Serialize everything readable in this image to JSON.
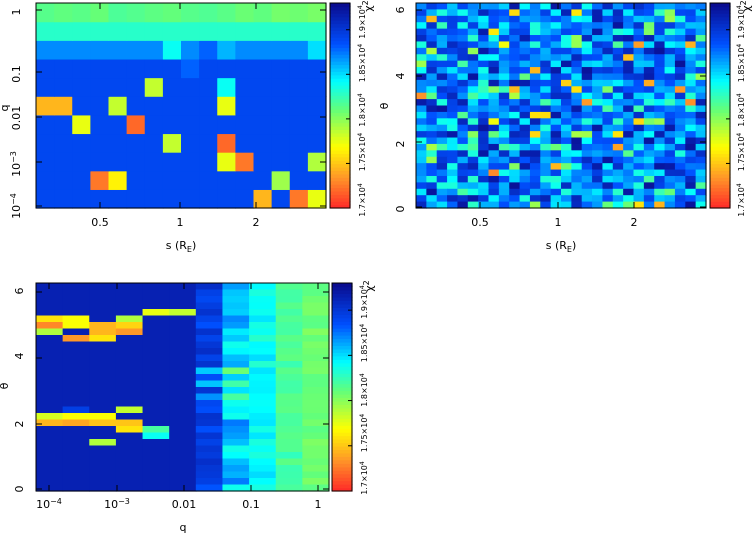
{
  "chart_data": [
    {
      "type": "heatmap",
      "title": "",
      "xlabel": "s (R_E)",
      "ylabel": "q",
      "xscale": "log",
      "yscale": "log",
      "xticks": [
        "0.5",
        "1",
        "2"
      ],
      "yticks": [
        "10^-4",
        "10^-3",
        "0.01",
        "0.1",
        "1"
      ],
      "grid_cols": 16,
      "grid_rows": 11,
      "colorbar_label": "χ²",
      "colorbar_ticks": [
        "1.7×10^4",
        "1.75×10^4",
        "1.8×10^4",
        "1.85×10^4",
        "1.9×10^4"
      ],
      "colorbar_range": [
        17000,
        19300
      ],
      "note": "rows listed bottom (q≈10^-4) to top (q≈1); values are chi-square estimates"
    },
    {
      "type": "heatmap",
      "title": "",
      "xlabel": "s (R_E)",
      "ylabel": "θ",
      "xscale": "log",
      "yscale": "linear",
      "xticks": [
        "0.5",
        "1",
        "2"
      ],
      "yticks": [
        "0",
        "2",
        "4",
        "6"
      ],
      "ylim": [
        0,
        6.28
      ],
      "grid_cols": 28,
      "grid_rows": 32,
      "colorbar_label": "χ²",
      "colorbar_ticks": [
        "1.7×10^4",
        "1.75×10^4",
        "1.8×10^4",
        "1.85×10^4",
        "1.9×10^4"
      ],
      "colorbar_range": [
        17000,
        19300
      ]
    },
    {
      "type": "heatmap",
      "title": "",
      "xlabel": "q",
      "ylabel": "θ",
      "xscale": "log",
      "yscale": "linear",
      "xticks": [
        "10^-4",
        "10^-3",
        "0.01",
        "0.1",
        "1"
      ],
      "yticks": [
        "0",
        "2",
        "4",
        "6"
      ],
      "ylim": [
        0,
        6.28
      ],
      "grid_cols": 11,
      "grid_rows": 32,
      "colorbar_label": "χ²",
      "colorbar_ticks": [
        "1.7×10^4",
        "1.75×10^4",
        "1.8×10^4",
        "1.85×10^4",
        "1.9×10^4"
      ],
      "colorbar_range": [
        17000,
        19300
      ]
    }
  ],
  "panel1": {
    "xlabel": "s (R",
    "xlabel_sub": "E",
    "xlabel_close": ")",
    "ylabel": "q",
    "xticks": [
      "0.5",
      "1",
      "2"
    ],
    "ytick_pow": [
      {
        "base": "10",
        "exp": "−4"
      },
      {
        "base": "10",
        "exp": "−3"
      }
    ],
    "yticks_plain": [
      "0.01",
      "0.1",
      "1"
    ],
    "cb_title": "χ",
    "cb_title_sup": "2",
    "cb_ticks": [
      "1.7×10",
      "1.75×10",
      "1.8×10",
      "1.85×10",
      "1.9×10"
    ],
    "cb_ticks_sup": "4"
  },
  "panel2": {
    "xlabel": "s (R",
    "xlabel_sub": "E",
    "xlabel_close": ")",
    "ylabel": "θ",
    "xticks": [
      "0.5",
      "1",
      "2"
    ],
    "yticks": [
      "0",
      "2",
      "4",
      "6"
    ],
    "cb_title": "χ",
    "cb_title_sup": "2",
    "cb_ticks": [
      "1.7×10",
      "1.75×10",
      "1.8×10",
      "1.85×10",
      "1.9×10"
    ],
    "cb_ticks_sup": "4"
  },
  "panel3": {
    "xlabel": "q",
    "ylabel": "θ",
    "xtick_pow": [
      {
        "base": "10",
        "exp": "−4"
      },
      {
        "base": "10",
        "exp": "−3"
      }
    ],
    "xticks_plain": [
      "0.01",
      "0.1",
      "1"
    ],
    "yticks": [
      "0",
      "2",
      "4",
      "6"
    ],
    "cb_title": "χ",
    "cb_title_sup": "2",
    "cb_ticks": [
      "1.7×10",
      "1.75×10",
      "1.8×10",
      "1.85×10",
      "1.9×10"
    ],
    "cb_ticks_sup": "4"
  },
  "grids": {
    "panel1_rows": [
      [
        18900,
        18900,
        18900,
        18900,
        18900,
        18900,
        18900,
        18900,
        18900,
        18900,
        18900,
        18900,
        17450,
        18900,
        17250,
        17750
      ],
      [
        18900,
        18900,
        18900,
        17250,
        17650,
        18900,
        18900,
        18900,
        18900,
        18900,
        18900,
        18900,
        18900,
        17950,
        18900,
        18900
      ],
      [
        18900,
        18900,
        18900,
        18900,
        18900,
        18900,
        18900,
        18900,
        18900,
        18900,
        17750,
        17250,
        18900,
        18900,
        18900,
        17900
      ],
      [
        18900,
        18900,
        18900,
        18900,
        18900,
        18900,
        18900,
        17850,
        18900,
        18900,
        17200,
        18900,
        18900,
        18900,
        18900,
        18900
      ],
      [
        18900,
        18900,
        17750,
        18900,
        18900,
        17200,
        18900,
        18900,
        18900,
        18900,
        18900,
        18900,
        18900,
        18900,
        18900,
        18900
      ],
      [
        17450,
        17450,
        18900,
        18900,
        17850,
        18900,
        18900,
        18900,
        18900,
        18900,
        17750,
        18900,
        18900,
        18900,
        18900,
        18900
      ],
      [
        18900,
        18900,
        18900,
        18900,
        18900,
        18900,
        17850,
        18900,
        18900,
        18900,
        18400,
        18900,
        18900,
        18900,
        18900,
        18900
      ],
      [
        18900,
        18900,
        18900,
        18900,
        18900,
        18900,
        18900,
        18900,
        18800,
        18900,
        18900,
        18900,
        18900,
        18900,
        18900,
        18900
      ],
      [
        18700,
        18700,
        18700,
        18700,
        18700,
        18700,
        18700,
        18400,
        18700,
        18800,
        18600,
        18700,
        18700,
        18700,
        18700,
        18500
      ],
      [
        18300,
        18300,
        18300,
        18300,
        18300,
        18300,
        18300,
        18300,
        18300,
        18300,
        18300,
        18300,
        18300,
        18300,
        18300,
        18300
      ],
      [
        18150,
        18120,
        18140,
        18100,
        18180,
        18160,
        18130,
        18110,
        18150,
        18170,
        18140,
        18090,
        18120,
        18060,
        18080,
        18050
      ]
    ]
  }
}
